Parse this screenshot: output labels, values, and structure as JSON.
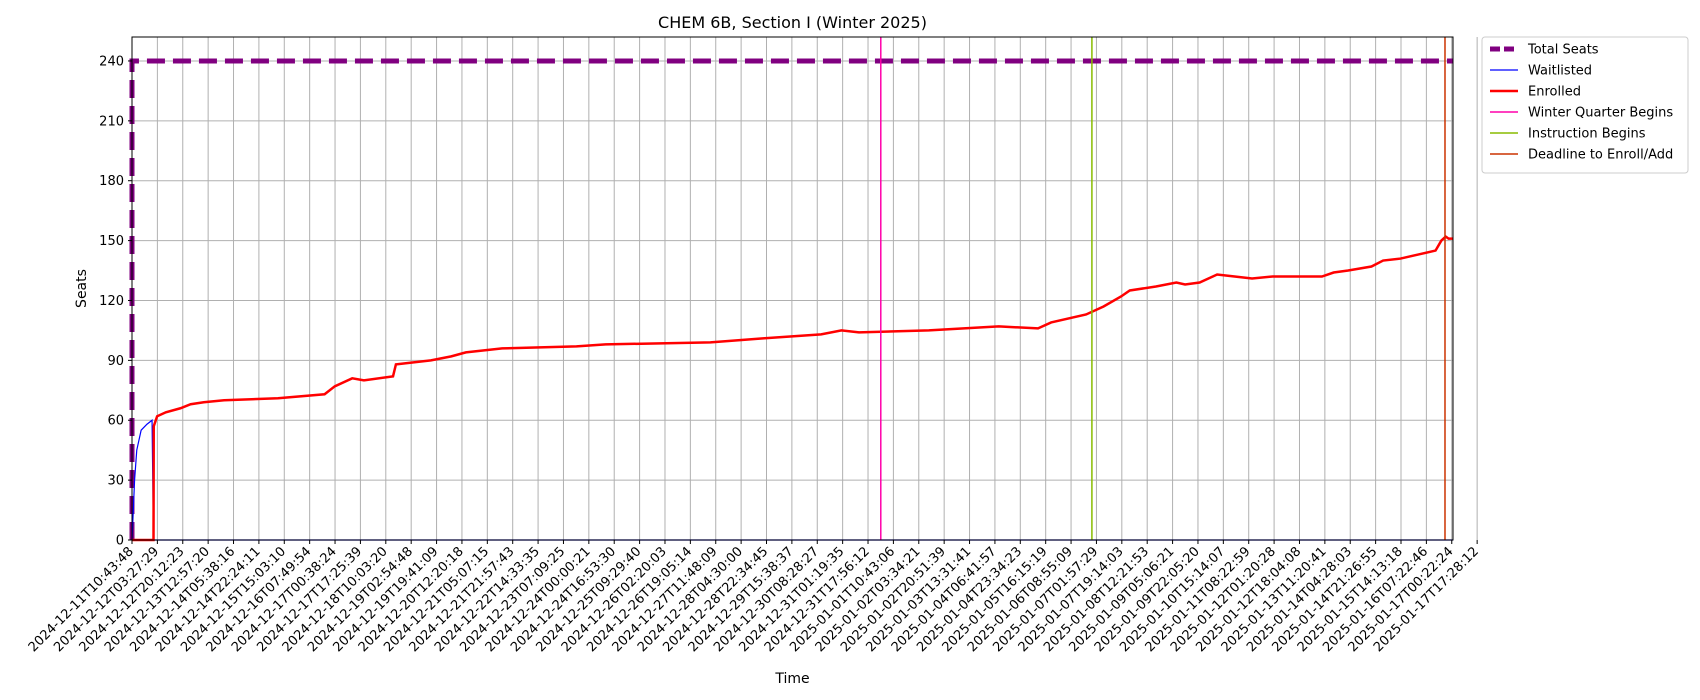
{
  "chart_data": {
    "type": "line",
    "title": "CHEM 6B, Section I (Winter 2025)",
    "xlabel": "Time",
    "ylabel": "Seats",
    "ylim": [
      0,
      252
    ],
    "yticks": [
      0,
      30,
      60,
      90,
      120,
      150,
      180,
      210,
      240
    ],
    "grid": true,
    "legend_position": "outside-top-right",
    "xlim": [
      "2024-12-11T10:43:48",
      "2025-01-18T06:00:00"
    ],
    "x_tick_labels": [
      "2024-12-11T10:43:48",
      "2024-12-12T03:27:29",
      "2024-12-12T20:12:23",
      "2024-12-13T12:57:20",
      "2024-12-14T05:38:16",
      "2024-12-14T22:24:11",
      "2024-12-15T15:03:10",
      "2024-12-16T07:49:54",
      "2024-12-17T00:38:24",
      "2024-12-17T17:25:39",
      "2024-12-18T10:03:20",
      "2024-12-19T02:54:48",
      "2024-12-19T19:41:09",
      "2024-12-20T12:20:18",
      "2024-12-21T05:07:15",
      "2024-12-21T21:57:43",
      "2024-12-22T14:33:35",
      "2024-12-23T07:09:25",
      "2024-12-24T00:00:21",
      "2024-12-24T16:53:30",
      "2024-12-25T09:29:40",
      "2024-12-26T02:20:03",
      "2024-12-26T19:05:14",
      "2024-12-27T11:48:09",
      "2024-12-28T04:30:00",
      "2024-12-28T22:34:45",
      "2024-12-29T15:38:37",
      "2024-12-30T08:28:27",
      "2024-12-31T01:19:35",
      "2024-12-31T17:56:12",
      "2025-01-01T10:43:06",
      "2025-01-02T03:34:21",
      "2025-01-02T20:51:39",
      "2025-01-03T13:31:41",
      "2025-01-04T06:41:57",
      "2025-01-04T23:34:23",
      "2025-01-05T16:15:19",
      "2025-01-06T08:55:09",
      "2025-01-07T01:57:29",
      "2025-01-07T19:14:03",
      "2025-01-08T12:21:53",
      "2025-01-09T05:06:21",
      "2025-01-09T22:05:20",
      "2025-01-10T15:14:07",
      "2025-01-11T08:22:59",
      "2025-01-12T01:20:28",
      "2025-01-12T18:04:08",
      "2025-01-13T11:20:41",
      "2025-01-14T04:28:03",
      "2025-01-14T21:26:55",
      "2025-01-15T14:13:18",
      "2025-01-16T07:22:46",
      "2025-01-17T00:22:24",
      "2025-01-17T17:28:12"
    ],
    "series": [
      {
        "name": "Total Seats",
        "color": "#800080",
        "style": "dashed",
        "width": 5,
        "points": [
          [
            "2024-12-11T10:43:48",
            0
          ],
          [
            "2024-12-11T10:43:48",
            240
          ],
          [
            "2025-01-18T06:00:00",
            240
          ]
        ]
      },
      {
        "name": "Waitlisted",
        "color": "#0000ff",
        "style": "solid",
        "width": 1.2,
        "points": [
          [
            "2024-12-11T10:43:48",
            0
          ],
          [
            "2024-12-11T11:20:00",
            10
          ],
          [
            "2024-12-11T12:30:00",
            30
          ],
          [
            "2024-12-11T14:00:00",
            45
          ],
          [
            "2024-12-11T17:00:00",
            55
          ],
          [
            "2024-12-11T21:00:00",
            58
          ],
          [
            "2024-12-12T00:30:00",
            60
          ],
          [
            "2024-12-12T01:30:00",
            0
          ],
          [
            "2025-01-18T06:00:00",
            0
          ]
        ]
      },
      {
        "name": "Enrolled",
        "color": "#ff0000",
        "style": "solid",
        "width": 2.5,
        "points": [
          [
            "2024-12-11T10:43:48",
            0
          ],
          [
            "2024-12-12T01:30:00",
            0
          ],
          [
            "2024-12-12T01:40:00",
            57
          ],
          [
            "2024-12-12T04:00:00",
            62
          ],
          [
            "2024-12-12T10:00:00",
            64
          ],
          [
            "2024-12-12T20:00:00",
            66
          ],
          [
            "2024-12-13T03:00:00",
            68
          ],
          [
            "2024-12-13T12:00:00",
            69
          ],
          [
            "2024-12-14T02:00:00",
            70
          ],
          [
            "2024-12-15T15:00:00",
            71
          ],
          [
            "2024-12-16T23:00:00",
            73
          ],
          [
            "2024-12-17T06:00:00",
            77
          ],
          [
            "2024-12-17T18:00:00",
            81
          ],
          [
            "2024-12-18T02:00:00",
            80
          ],
          [
            "2024-12-18T22:00:00",
            82
          ],
          [
            "2024-12-19T00:00:00",
            88
          ],
          [
            "2024-12-20T00:00:00",
            90
          ],
          [
            "2024-12-20T14:00:00",
            92
          ],
          [
            "2024-12-21T00:00:00",
            94
          ],
          [
            "2024-12-22T01:00:00",
            96
          ],
          [
            "2024-12-24T04:00:00",
            97
          ],
          [
            "2024-12-25T00:00:00",
            98
          ],
          [
            "2024-12-28T00:00:00",
            99
          ],
          [
            "2024-12-29T12:00:00",
            101
          ],
          [
            "2024-12-31T04:00:00",
            103
          ],
          [
            "2024-12-31T18:00:00",
            105
          ],
          [
            "2025-01-01T06:00:00",
            104
          ],
          [
            "2025-01-03T06:00:00",
            105
          ],
          [
            "2025-01-04T06:00:00",
            106
          ],
          [
            "2025-01-05T06:00:00",
            107
          ],
          [
            "2025-01-06T09:00:00",
            106
          ],
          [
            "2025-01-06T18:00:00",
            109
          ],
          [
            "2025-01-07T18:00:00",
            113
          ],
          [
            "2025-01-08T06:00:00",
            117
          ],
          [
            "2025-01-08T18:00:00",
            122
          ],
          [
            "2025-01-09T00:00:00",
            125
          ],
          [
            "2025-01-09T18:00:00",
            127
          ],
          [
            "2025-01-10T08:00:00",
            129
          ],
          [
            "2025-01-10T14:00:00",
            128
          ],
          [
            "2025-01-11T00:00:00",
            129
          ],
          [
            "2025-01-11T12:00:00",
            133
          ],
          [
            "2025-01-12T00:00:00",
            132
          ],
          [
            "2025-01-12T12:00:00",
            131
          ],
          [
            "2025-01-13T02:00:00",
            132
          ],
          [
            "2025-01-14T12:00:00",
            132
          ],
          [
            "2025-01-14T20:00:00",
            134
          ],
          [
            "2025-01-15T06:00:00",
            135
          ],
          [
            "2025-01-15T22:00:00",
            137
          ],
          [
            "2025-01-16T06:00:00",
            140
          ],
          [
            "2025-01-16T18:00:00",
            141
          ],
          [
            "2025-01-17T06:00:00",
            143
          ],
          [
            "2025-01-17T18:00:00",
            145
          ],
          [
            "2025-01-17T22:00:00",
            150
          ],
          [
            "2025-01-18T01:00:00",
            152
          ],
          [
            "2025-01-18T03:00:00",
            151
          ],
          [
            "2025-01-18T06:00:00",
            151
          ]
        ]
      }
    ],
    "vlines": [
      {
        "name": "Winter Quarter Begins",
        "color": "#ff00aa",
        "x": "2025-01-01T21:00:00"
      },
      {
        "name": "Instruction Begins",
        "color": "#88bb00",
        "x": "2025-01-07T22:00:00"
      },
      {
        "name": "Deadline to Enroll/Add",
        "color": "#cc3300",
        "x": "2025-01-18T00:30:00"
      }
    ]
  }
}
